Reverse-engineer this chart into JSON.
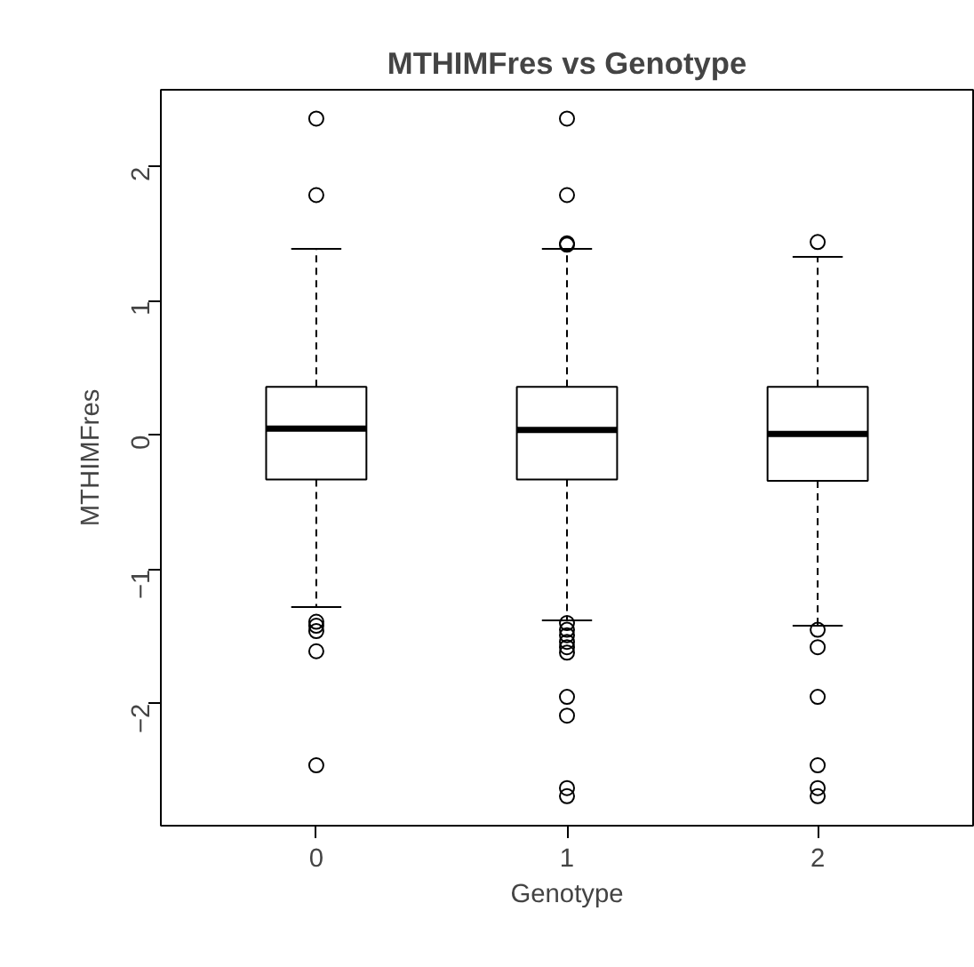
{
  "chart_data": {
    "type": "box",
    "title": "MTHIMFres vs Genotype",
    "xlabel": "Genotype",
    "ylabel": "MTHIMFres",
    "categories": [
      "0",
      "1",
      "2"
    ],
    "boxes": [
      {
        "low": -1.28,
        "q1": -0.33,
        "median": 0.05,
        "q3": 0.36,
        "high": 1.39,
        "outliers": [
          2.36,
          1.79,
          -1.39,
          -1.42,
          -1.46,
          -1.61,
          -2.46
        ]
      },
      {
        "low": -1.38,
        "q1": -0.33,
        "median": 0.04,
        "q3": 0.36,
        "high": 1.39,
        "outliers": [
          2.36,
          1.79,
          1.43,
          1.42,
          -1.4,
          -1.45,
          -1.49,
          -1.54,
          -1.58,
          -1.62,
          -1.95,
          -2.09,
          -2.63,
          -2.69
        ]
      },
      {
        "low": -1.42,
        "q1": -0.34,
        "median": 0.01,
        "q3": 0.36,
        "high": 1.33,
        "outliers": [
          1.44,
          -1.45,
          -1.58,
          -1.95,
          -2.46,
          -2.63,
          -2.69
        ]
      }
    ],
    "ylim": [
      -2.91,
      2.575
    ],
    "yticks": [
      {
        "value": -2,
        "label": "−2"
      },
      {
        "value": -1,
        "label": "−1"
      },
      0,
      1,
      2
    ],
    "grid": false,
    "color": "#000000"
  }
}
